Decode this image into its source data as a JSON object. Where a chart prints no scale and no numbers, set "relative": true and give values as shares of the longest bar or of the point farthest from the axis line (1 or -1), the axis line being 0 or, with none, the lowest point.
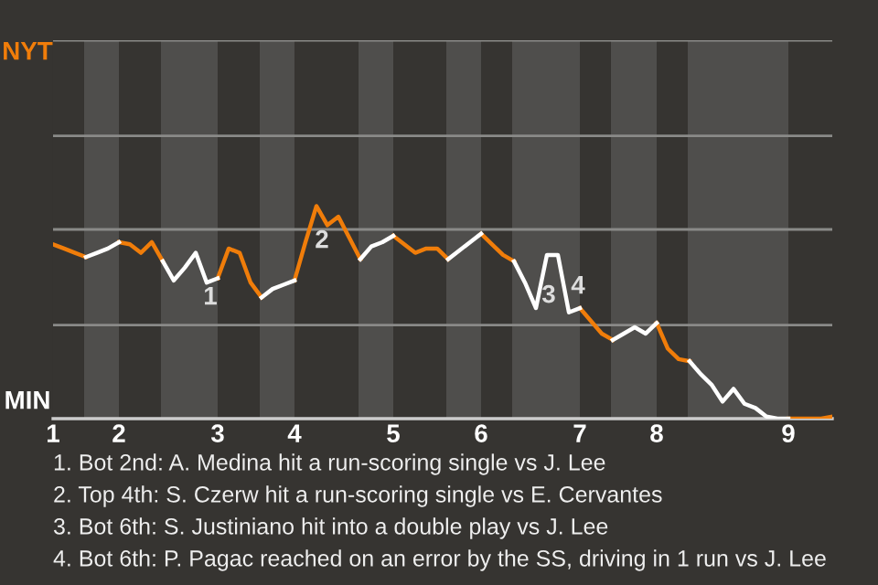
{
  "chart_data": {
    "type": "line",
    "relative": true,
    "categories": [
      "1",
      null,
      null,
      null,
      null,
      null,
      "2",
      null,
      null,
      null,
      null,
      null,
      null,
      null,
      null,
      "3",
      null,
      null,
      null,
      null,
      null,
      null,
      "4",
      null,
      null,
      null,
      null,
      null,
      null,
      null,
      null,
      "5",
      null,
      null,
      null,
      null,
      null,
      null,
      null,
      "6",
      null,
      null,
      null,
      null,
      null,
      null,
      null,
      null,
      "7",
      null,
      null,
      null,
      null,
      null,
      null,
      "8",
      null,
      null,
      null,
      null,
      null,
      null,
      null,
      null,
      null,
      null,
      null,
      "9",
      null,
      null,
      null,
      null
    ],
    "legend": false,
    "marker": "none",
    "line_style": "solid",
    "ref_lines": [
      {
        "axis": "y",
        "value": 0.44,
        "color": "#8a8a88"
      },
      {
        "axis": "y",
        "value": 0.89,
        "color": "#8a8a88"
      },
      {
        "axis": "y",
        "value": 1.33,
        "color": "#8a8a88"
      },
      {
        "axis": "y",
        "value": 1.78,
        "color": "#8a8a88"
      }
    ],
    "series": [
      {
        "color": "#f07d0a",
        "values": [
          0.82,
          0.8,
          0.78,
          0.76,
          null,
          null,
          0.83,
          0.82,
          0.78,
          0.83,
          0.74,
          null,
          null,
          null,
          null,
          0.66,
          0.8,
          0.78,
          0.64,
          0.57,
          null,
          null,
          0.65,
          0.83,
          1,
          0.91,
          0.95,
          0.85,
          0.75,
          null,
          null,
          0.86,
          0.82,
          0.78,
          0.8,
          0.8,
          0.75,
          null,
          null,
          0.87,
          0.82,
          0.77,
          0.74,
          null,
          null,
          null,
          null,
          null,
          0.52,
          0.46,
          0.4,
          0.37,
          null,
          null,
          null,
          0.45,
          0.33,
          0.28,
          0.27,
          null,
          null,
          null,
          null,
          null,
          null,
          null,
          null,
          0,
          0,
          0,
          0,
          0.01
        ]
      },
      {
        "color": "#ffffff",
        "values": [
          null,
          null,
          null,
          0.76,
          0.78,
          0.8,
          0.83,
          null,
          null,
          null,
          0.74,
          0.65,
          0.71,
          0.78,
          0.64,
          0.66,
          null,
          null,
          null,
          0.57,
          0.61,
          0.63,
          0.65,
          null,
          null,
          null,
          null,
          null,
          0.75,
          0.81,
          0.83,
          0.86,
          null,
          null,
          null,
          null,
          0.75,
          0.79,
          0.83,
          0.87,
          null,
          null,
          0.74,
          0.64,
          0.52,
          0.77,
          0.77,
          0.5,
          0.52,
          null,
          null,
          0.37,
          0.4,
          0.43,
          0.4,
          0.45,
          null,
          null,
          0.27,
          0.21,
          0.16,
          0.08,
          0.14,
          0.07,
          0.05,
          0.01,
          0,
          0,
          null,
          null,
          null,
          null
        ]
      }
    ],
    "annotations": [
      "NYT",
      "MIN",
      "1",
      "2",
      "3",
      "4",
      "1. Bot 2nd: A. Medina hit a run-scoring single vs J. Lee",
      "2. Top 4th: S. Czerw hit a run-scoring single vs E. Cervantes",
      "3. Bot 6th: S. Justiniano hit into a double play vs J. Lee",
      "4. Bot 6th: P. Pagac reached on an error by the SS, driving in 1 run vs J. Lee"
    ]
  }
}
